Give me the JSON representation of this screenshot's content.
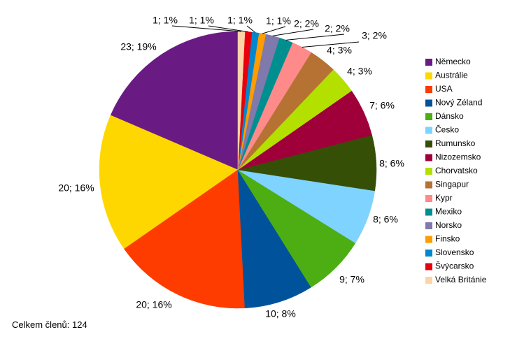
{
  "chart_data": {
    "type": "pie",
    "slices": [
      {
        "label": "Německo",
        "value": 23,
        "percent": 19,
        "color": "#6a1b83",
        "text": "23; 19%"
      },
      {
        "label": "Austrálie",
        "value": 20,
        "percent": 16,
        "color": "#ffd700",
        "text": "20; 16%"
      },
      {
        "label": "USA",
        "value": 20,
        "percent": 16,
        "color": "#ff3c00",
        "text": "20; 16%"
      },
      {
        "label": "Nový Zéland",
        "value": 10,
        "percent": 8,
        "color": "#00539b",
        "text": "10; 8%"
      },
      {
        "label": "Dánsko",
        "value": 9,
        "percent": 7,
        "color": "#4cae12",
        "text": "9; 7%"
      },
      {
        "label": "Česko",
        "value": 8,
        "percent": 6,
        "color": "#7fd3ff",
        "text": "8; 6%"
      },
      {
        "label": "Rumunsko",
        "value": 8,
        "percent": 6,
        "color": "#354f06",
        "text": "8; 6%"
      },
      {
        "label": "Nizozemsko",
        "value": 7,
        "percent": 6,
        "color": "#a0003a",
        "text": "7; 6%"
      },
      {
        "label": "Chorvatsko",
        "value": 4,
        "percent": 3,
        "color": "#b4e000",
        "text": "4; 3%"
      },
      {
        "label": "Singapur",
        "value": 4,
        "percent": 3,
        "color": "#b67233",
        "text": "4; 3%"
      },
      {
        "label": "Kypr",
        "value": 3,
        "percent": 2,
        "color": "#ff8a8a",
        "text": "3; 2%"
      },
      {
        "label": "Mexiko",
        "value": 2,
        "percent": 2,
        "color": "#008f8f",
        "text": "2; 2%"
      },
      {
        "label": "Norsko",
        "value": 2,
        "percent": 2,
        "color": "#8079ab",
        "text": "2; 2%"
      },
      {
        "label": "Finsko",
        "value": 1,
        "percent": 1,
        "color": "#ff9c00",
        "text": "1; 1%"
      },
      {
        "label": "Slovensko",
        "value": 1,
        "percent": 1,
        "color": "#0087cf",
        "text": "1; 1%"
      },
      {
        "label": "Švýcarsko",
        "value": 1,
        "percent": 1,
        "color": "#e8000d",
        "text": "1; 1%"
      },
      {
        "label": "Velká Británie",
        "value": 1,
        "percent": 1,
        "color": "#ffd3a8",
        "text": "1; 1%"
      }
    ],
    "legend_position": "right"
  },
  "footer": {
    "note": "Celkem členů: 124"
  }
}
